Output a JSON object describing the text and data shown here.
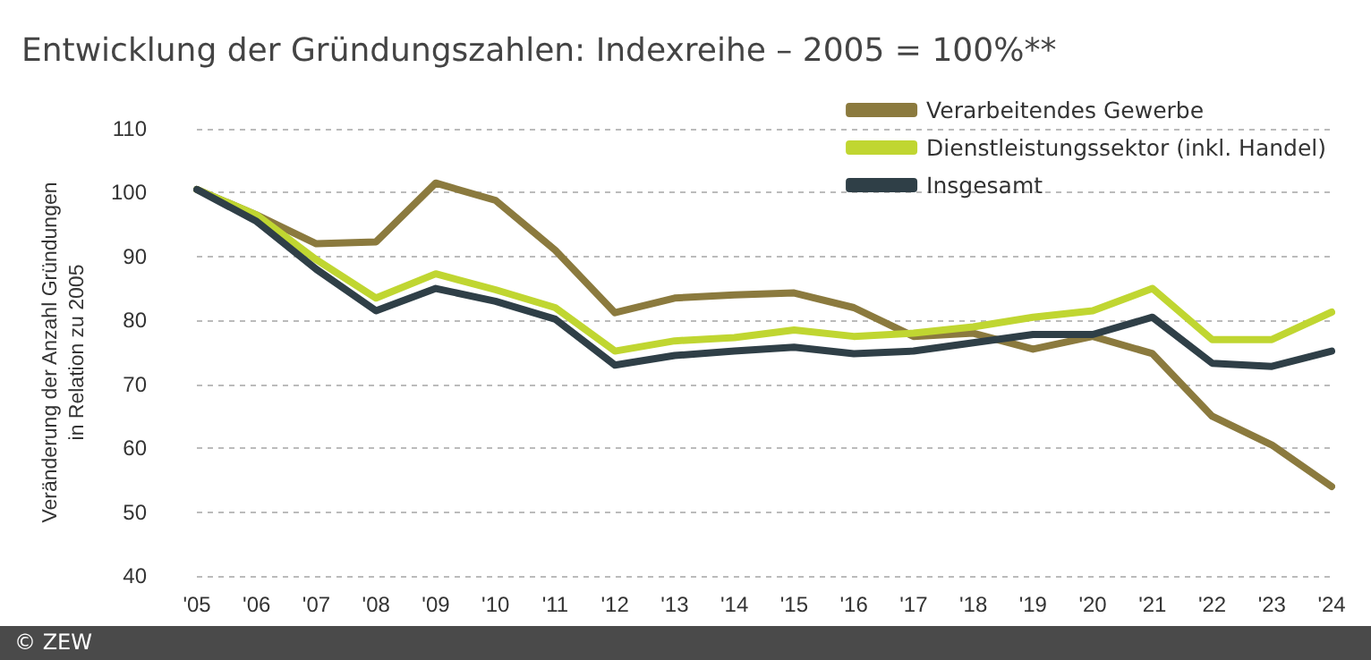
{
  "chart_data": {
    "type": "line",
    "title": "Entwicklung der Gründungszahlen: Indexreihe – 2005 = 100%**",
    "ylabel": "Veränderung der Anzahl Gründungen\nin Relation zu 2005",
    "annotations": [
      "© ZEW"
    ],
    "categories": [
      "'05",
      "'06",
      "'07",
      "'08",
      "'09",
      "'10",
      "'11",
      "'12",
      "'13",
      "'14",
      "'15",
      "'16",
      "'17",
      "'18",
      "'19",
      "'20",
      "'21",
      "'22",
      "'23",
      "'24"
    ],
    "series": [
      {
        "name": "Verarbeitendes Gewerbe",
        "color": "#8b7a3e",
        "values": [
          100.5,
          96.5,
          92,
          92.3,
          101.5,
          98.8,
          91,
          81.2,
          83.5,
          84,
          84.3,
          82,
          77.5,
          78,
          75.5,
          77.5,
          74.8,
          65,
          60.5,
          54
        ]
      },
      {
        "name": "Dienstleistungssektor (inkl. Handel)",
        "color": "#c0d631",
        "values": [
          100.5,
          96.5,
          89.5,
          83.5,
          87.3,
          84.8,
          82,
          75.2,
          76.8,
          77.3,
          78.5,
          77.5,
          78,
          79,
          80.5,
          81.5,
          85,
          77,
          77,
          81.3
        ]
      },
      {
        "name": "Insgesamt",
        "color": "#2f3f47",
        "values": [
          100.5,
          95.5,
          88,
          81.5,
          85,
          83,
          80.2,
          73,
          74.5,
          75.2,
          75.8,
          74.8,
          75.2,
          76.5,
          77.8,
          77.8,
          80.5,
          73.3,
          72.8,
          75.2
        ]
      }
    ],
    "ylim": [
      40,
      110
    ],
    "yticks": [
      40,
      50,
      60,
      70,
      80,
      90,
      100,
      110
    ],
    "grid": "y",
    "legend": "top right",
    "marker": "none",
    "line_style": "solid"
  }
}
